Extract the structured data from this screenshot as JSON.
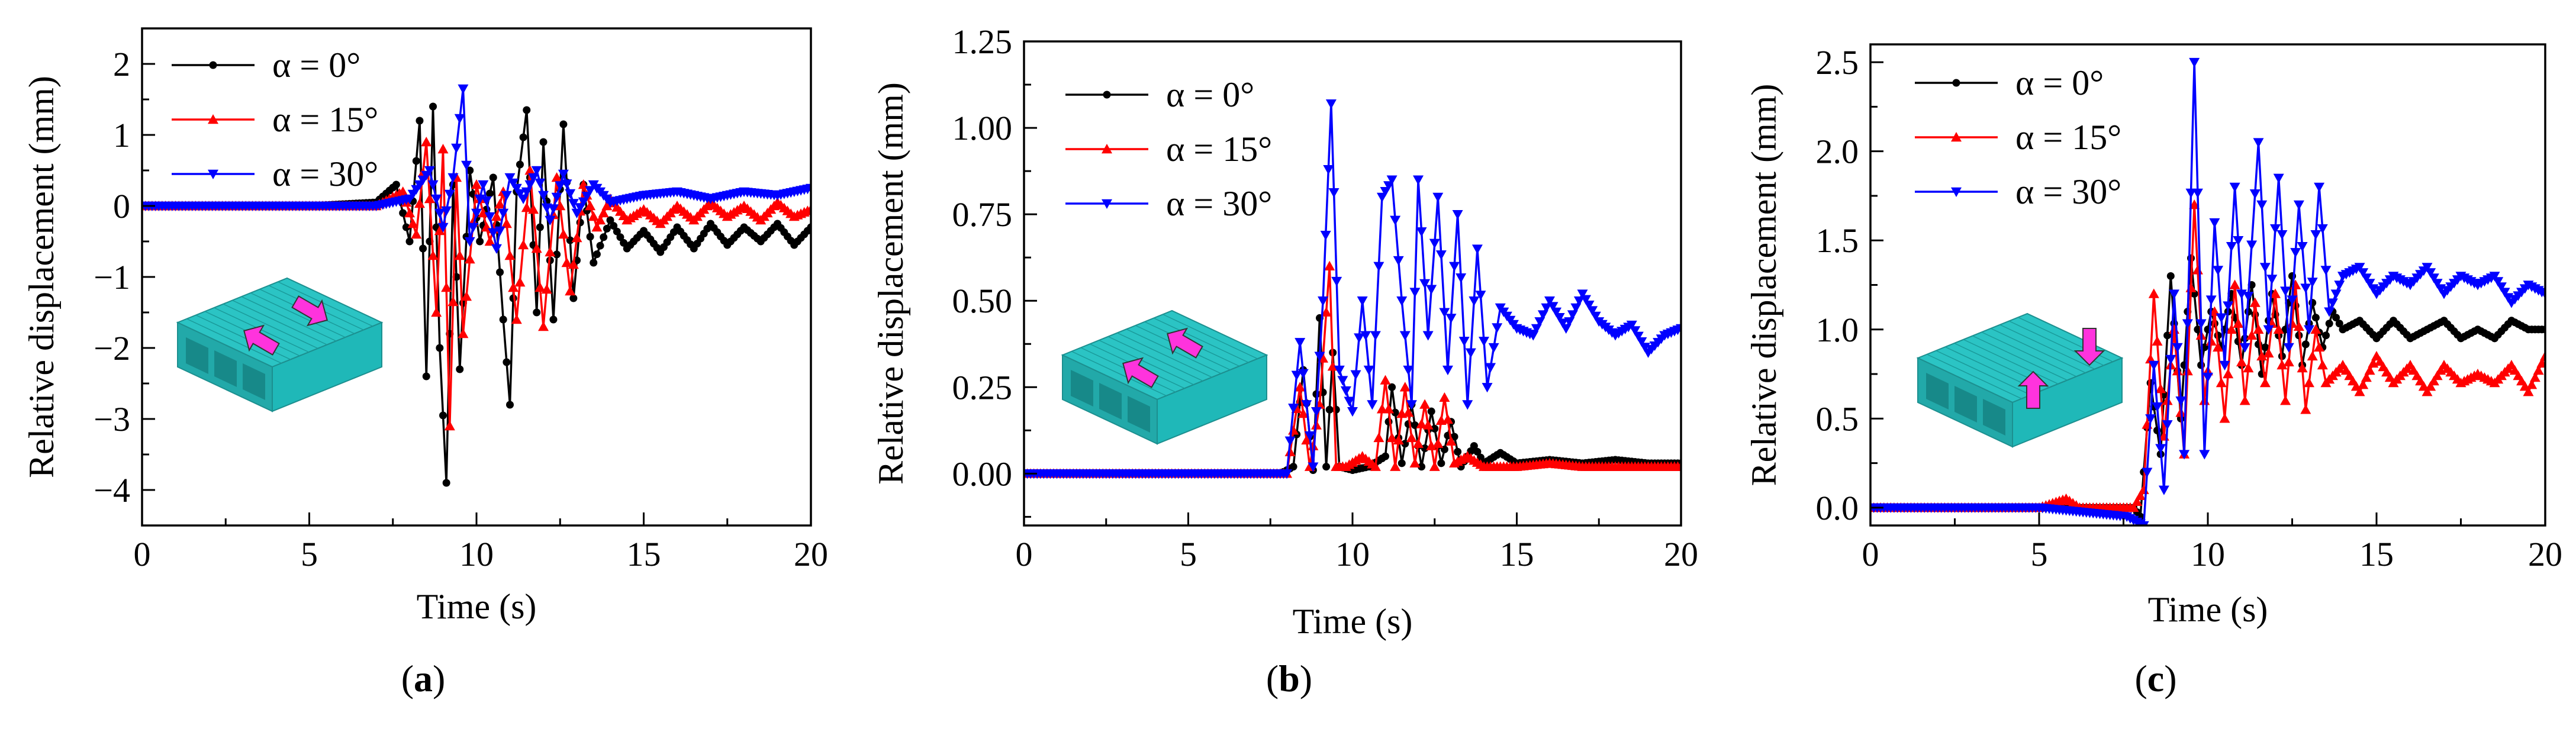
{
  "figure": {
    "captions": [
      {
        "open": "(",
        "letter": "a",
        "close": ")"
      },
      {
        "open": "(",
        "letter": "b",
        "close": ")"
      },
      {
        "open": "(",
        "letter": "c",
        "close": ")"
      }
    ]
  },
  "colors": {
    "s0": "#000000",
    "s15": "#ff0000",
    "s30": "#0000ff",
    "model": "#2bc4c4",
    "arrow": "#ff33dd"
  },
  "chart_data": [
    {
      "type": "line",
      "xlabel": "Time (s)",
      "ylabel": "Relative displacement (mm)",
      "xlim": [
        0,
        20
      ],
      "ylim": [
        -4.5,
        2.5
      ],
      "xticks": [
        0,
        5,
        10,
        15,
        20
      ],
      "yticks": [
        -4,
        -3,
        -2,
        -1,
        0,
        1,
        2
      ],
      "ytick_labels": [
        "−4",
        "−3",
        "−2",
        "−1",
        "0",
        "1",
        "2"
      ],
      "legend": "top-left",
      "series": [
        {
          "name": "α = 0°",
          "marker": "circle",
          "x": [
            0,
            5,
            7,
            7.6,
            8,
            8.3,
            8.5,
            8.7,
            8.9,
            9.1,
            9.3,
            9.5,
            9.8,
            10.1,
            10.5,
            10.8,
            11.0,
            11.2,
            11.5,
            11.8,
            12.0,
            12.3,
            12.6,
            12.9,
            13.2,
            13.5,
            14.0,
            14.5,
            15.0,
            15.5,
            16.0,
            16.5,
            17.0,
            17.5,
            18.0,
            18.5,
            19.0,
            19.5,
            20.0
          ],
          "y": [
            0,
            0,
            0.05,
            0.3,
            -0.5,
            1.2,
            -2.4,
            1.4,
            -2.0,
            -3.9,
            0.3,
            -2.3,
            0.5,
            -0.5,
            0.4,
            -1.6,
            -2.8,
            0.2,
            1.35,
            -1.5,
            0.9,
            -1.6,
            1.15,
            -1.3,
            0.3,
            -0.8,
            -0.2,
            -0.6,
            -0.35,
            -0.65,
            -0.3,
            -0.6,
            -0.25,
            -0.55,
            -0.3,
            -0.5,
            -0.25,
            -0.55,
            -0.3
          ]
        },
        {
          "name": "α = 15°",
          "marker": "triangle-up",
          "x": [
            0,
            5,
            7,
            7.8,
            8.2,
            8.5,
            8.8,
            9.0,
            9.2,
            9.4,
            9.6,
            10.0,
            10.4,
            10.8,
            11.2,
            11.6,
            12.0,
            12.4,
            12.8,
            13.2,
            13.6,
            14.0,
            14.5,
            15.0,
            15.5,
            16.0,
            16.5,
            17.0,
            17.5,
            18.0,
            18.5,
            19.0,
            19.5,
            20.0
          ],
          "y": [
            0,
            0,
            0,
            0.2,
            -0.4,
            0.9,
            -1.5,
            0.8,
            -3.1,
            0.4,
            -1.8,
            0.3,
            -0.5,
            0.2,
            -1.6,
            0.5,
            -1.7,
            0.4,
            -1.2,
            0.3,
            -0.3,
            0.1,
            -0.2,
            -0.05,
            -0.25,
            0,
            -0.2,
            0.05,
            -0.15,
            0,
            -0.2,
            0.05,
            -0.15,
            -0.05
          ]
        },
        {
          "name": "α = 30°",
          "marker": "triangle-down",
          "x": [
            0,
            5,
            7,
            8,
            8.6,
            9.0,
            9.3,
            9.6,
            9.8,
            10.2,
            10.6,
            11.0,
            11.4,
            11.8,
            12.2,
            12.6,
            13.0,
            13.5,
            14.0,
            15.0,
            16.0,
            17.0,
            18.0,
            19.0,
            20.0
          ],
          "y": [
            0,
            0,
            0,
            0.1,
            0.5,
            -0.3,
            0.4,
            1.65,
            -0.5,
            0.3,
            -0.6,
            0.4,
            0.1,
            0.5,
            -0.2,
            0.45,
            -0.1,
            0.3,
            0.05,
            0.15,
            0.2,
            0.1,
            0.2,
            0.15,
            0.25
          ]
        }
      ]
    },
    {
      "type": "line",
      "xlabel": "Time (s)",
      "ylabel": "Relative displacement (mm)",
      "xlim": [
        0,
        20
      ],
      "ylim": [
        -0.15,
        1.25
      ],
      "xticks": [
        0,
        5,
        10,
        15,
        20
      ],
      "yticks": [
        0,
        0.25,
        0.5,
        0.75,
        1.0,
        1.25
      ],
      "ytick_labels": [
        "0.00",
        "0.25",
        "0.50",
        "0.75",
        "1.00",
        "1.25"
      ],
      "legend": "top-left",
      "series": [
        {
          "name": "α = 0°",
          "marker": "circle",
          "x": [
            0,
            7.8,
            8.2,
            8.5,
            8.8,
            9.0,
            9.2,
            9.4,
            9.6,
            10,
            10.5,
            11,
            11.2,
            11.5,
            11.8,
            12.1,
            12.4,
            12.7,
            13.0,
            13.3,
            13.7,
            14.0,
            14.5,
            15,
            16,
            17,
            18,
            19,
            20
          ],
          "y": [
            0,
            0,
            0.02,
            0.3,
            0.01,
            0.45,
            0.02,
            0.35,
            0.02,
            0.01,
            0.02,
            0.05,
            0.25,
            0.03,
            0.2,
            0.02,
            0.18,
            0.03,
            0.15,
            0.02,
            0.08,
            0.03,
            0.06,
            0.03,
            0.04,
            0.03,
            0.04,
            0.03,
            0.03
          ]
        },
        {
          "name": "α = 15°",
          "marker": "triangle-up",
          "x": [
            0,
            8,
            8.4,
            8.7,
            9.0,
            9.3,
            9.5,
            9.8,
            10.3,
            10.7,
            11.0,
            11.3,
            11.6,
            11.9,
            12.2,
            12.5,
            12.8,
            13.1,
            13.5,
            14,
            15,
            16,
            17,
            18,
            19,
            20
          ],
          "y": [
            0,
            0,
            0.25,
            0.02,
            0.2,
            0.6,
            0.02,
            0.02,
            0.05,
            0.02,
            0.27,
            0.02,
            0.25,
            0.03,
            0.2,
            0.02,
            0.22,
            0.03,
            0.05,
            0.02,
            0.02,
            0.03,
            0.02,
            0.02,
            0.02,
            0.02
          ]
        },
        {
          "name": "α = 30°",
          "marker": "triangle-down",
          "x": [
            0,
            8,
            8.4,
            8.8,
            9.1,
            9.35,
            9.6,
            10.0,
            10.3,
            10.6,
            10.9,
            11.2,
            11.5,
            11.8,
            12.0,
            12.3,
            12.6,
            12.9,
            13.2,
            13.5,
            13.8,
            14.1,
            14.5,
            15,
            15.5,
            16,
            16.5,
            17,
            17.5,
            18,
            18.5,
            19,
            19.5,
            20
          ],
          "y": [
            0,
            0,
            0.38,
            0.02,
            0.5,
            1.07,
            0.3,
            0.18,
            0.5,
            0.2,
            0.8,
            0.85,
            0.5,
            0.2,
            0.85,
            0.4,
            0.8,
            0.3,
            0.75,
            0.2,
            0.65,
            0.25,
            0.48,
            0.42,
            0.4,
            0.5,
            0.42,
            0.52,
            0.44,
            0.4,
            0.43,
            0.35,
            0.4,
            0.42
          ]
        }
      ]
    },
    {
      "type": "line",
      "xlabel": "Time (s)",
      "ylabel": "Relative displacement (mm)",
      "xlim": [
        0,
        20
      ],
      "ylim": [
        -0.1,
        2.6
      ],
      "xticks": [
        0,
        5,
        10,
        15,
        20
      ],
      "yticks": [
        0,
        0.5,
        1.0,
        1.5,
        2.0,
        2.5
      ],
      "ytick_labels": [
        "0.0",
        "0.5",
        "1.0",
        "1.5",
        "2.0",
        "2.5"
      ],
      "legend": "top-left",
      "series": [
        {
          "name": "α = 0°",
          "marker": "circle",
          "x": [
            0,
            5,
            7.8,
            8.0,
            8.3,
            8.6,
            8.9,
            9.2,
            9.5,
            9.8,
            10.1,
            10.4,
            10.7,
            11.0,
            11.3,
            11.6,
            11.9,
            12.2,
            12.5,
            12.8,
            13.1,
            13.4,
            13.7,
            14,
            14.5,
            15,
            15.5,
            16,
            16.5,
            17,
            17.5,
            18,
            18.5,
            19,
            19.5,
            20
          ],
          "y": [
            0,
            0,
            0,
            -0.05,
            0.7,
            0.3,
            1.3,
            0.5,
            1.4,
            0.8,
            1.1,
            0.9,
            1.2,
            0.8,
            1.25,
            0.75,
            1.2,
            0.85,
            1.3,
            0.8,
            1.15,
            0.9,
            1.1,
            1.0,
            1.05,
            0.95,
            1.05,
            0.95,
            1.0,
            1.05,
            0.95,
            1.0,
            0.95,
            1.05,
            1.0,
            1.0
          ]
        },
        {
          "name": "α = 15°",
          "marker": "triangle-up",
          "x": [
            0,
            5,
            5.8,
            6.2,
            7.8,
            8.1,
            8.4,
            8.7,
            9.0,
            9.3,
            9.6,
            9.9,
            10.2,
            10.5,
            10.8,
            11.1,
            11.4,
            11.7,
            12.0,
            12.3,
            12.6,
            12.9,
            13.2,
            13.5,
            14,
            14.5,
            15,
            15.5,
            16,
            16.5,
            17,
            17.5,
            18,
            18.5,
            19,
            19.5,
            20
          ],
          "y": [
            0,
            0,
            0.05,
            0,
            0,
            0.1,
            1.2,
            0.4,
            1.0,
            0.3,
            1.7,
            0.6,
            1.1,
            0.5,
            1.25,
            0.6,
            1.15,
            0.7,
            1.2,
            0.6,
            1.25,
            0.55,
            1.0,
            0.7,
            0.8,
            0.65,
            0.85,
            0.7,
            0.8,
            0.65,
            0.8,
            0.7,
            0.75,
            0.7,
            0.8,
            0.65,
            0.85
          ]
        },
        {
          "name": "α = 30°",
          "marker": "triangle-down",
          "x": [
            0,
            5,
            7.6,
            8.1,
            8.4,
            8.7,
            9.0,
            9.3,
            9.6,
            9.9,
            10.2,
            10.5,
            10.8,
            11.1,
            11.5,
            11.8,
            12.1,
            12.4,
            12.7,
            13.0,
            13.3,
            13.6,
            14,
            14.5,
            15,
            15.5,
            16,
            16.5,
            17,
            17.5,
            18,
            18.5,
            19,
            19.5,
            20
          ],
          "y": [
            0,
            0,
            -0.05,
            -0.1,
            0.8,
            0.1,
            1.2,
            0.3,
            2.5,
            0.3,
            1.6,
            0.8,
            1.8,
            0.9,
            2.05,
            1.0,
            1.85,
            0.9,
            1.7,
            1.0,
            1.8,
            1.1,
            1.3,
            1.35,
            1.2,
            1.3,
            1.25,
            1.35,
            1.2,
            1.3,
            1.25,
            1.3,
            1.15,
            1.25,
            1.2
          ]
        }
      ]
    }
  ]
}
